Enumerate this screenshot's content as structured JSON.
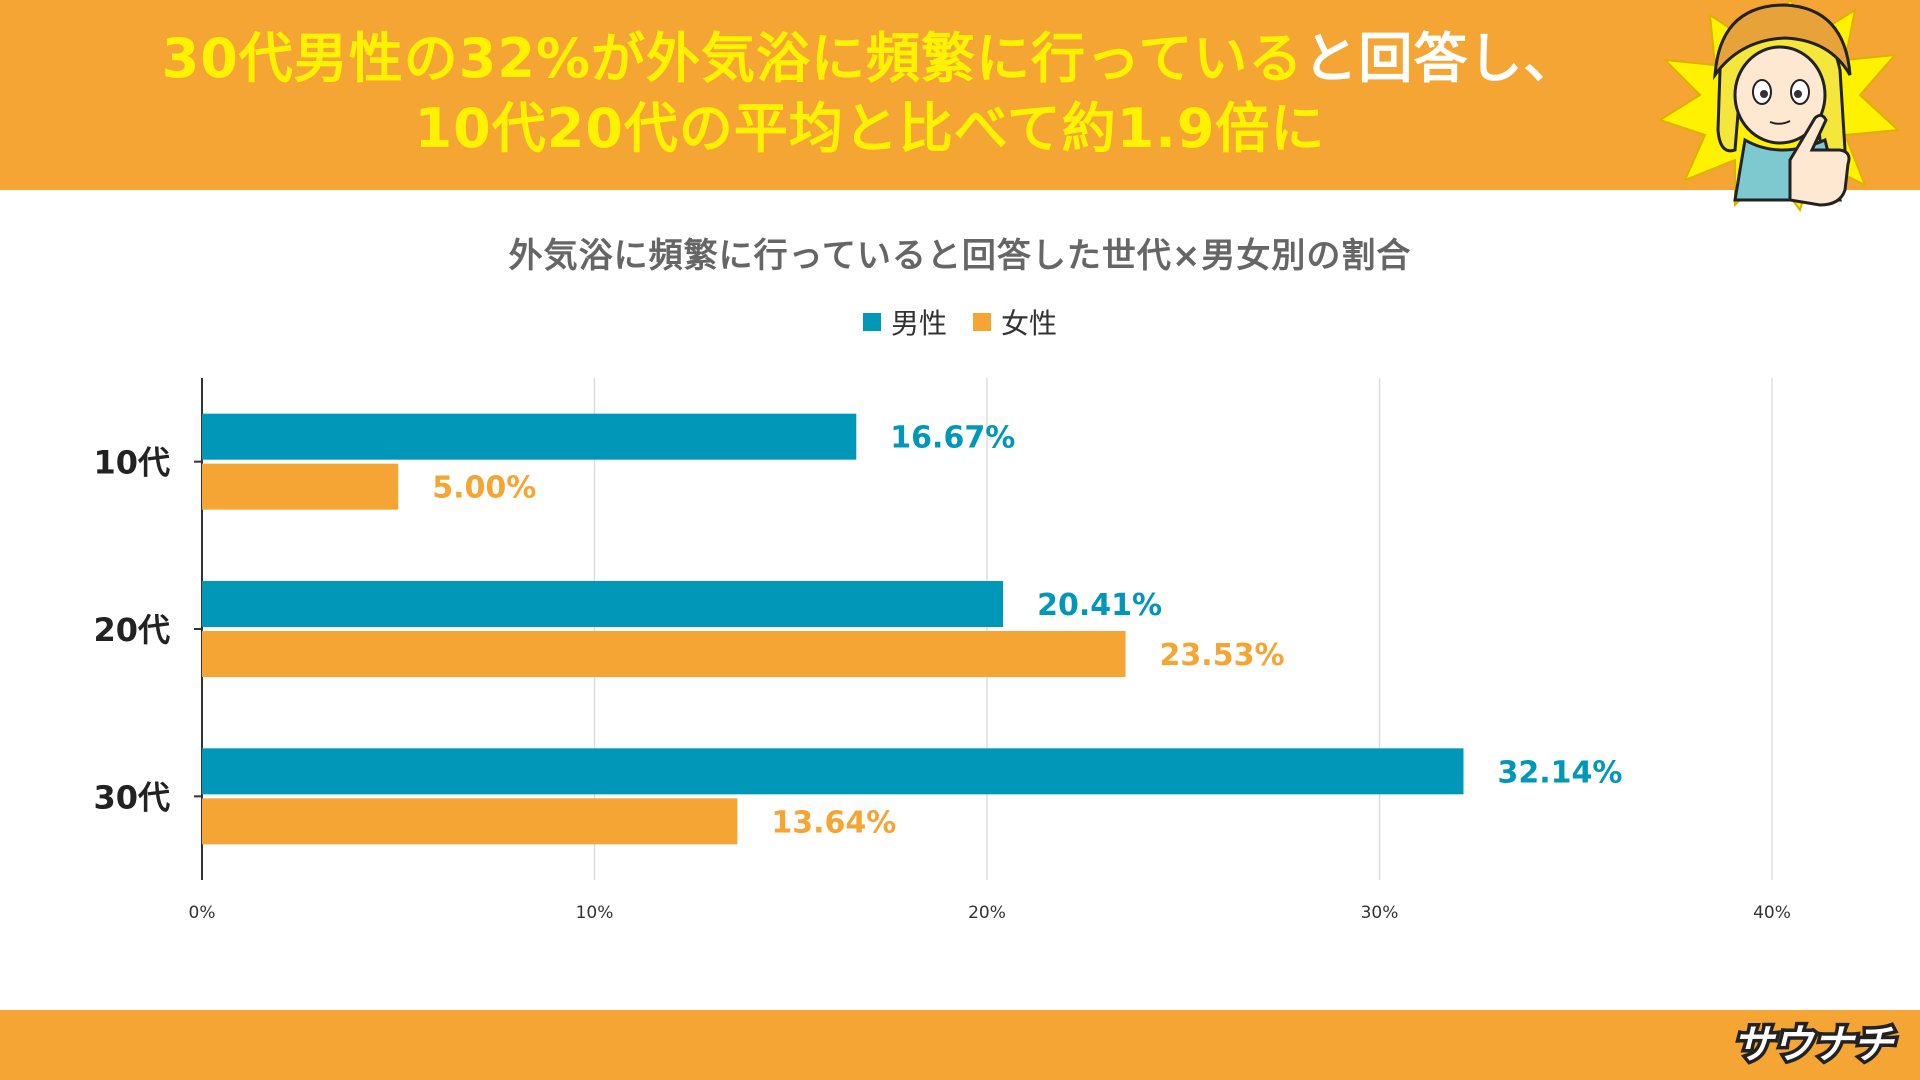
{
  "header": {
    "headline_part1": "30代男性の32%が外気浴に頻繁に行っている",
    "headline_part2": "と回答し、",
    "headline_line2": "10代20代の平均と比べて約1.9倍に",
    "accent_color": "#fff200",
    "banner_color": "#f4a533"
  },
  "chart_data": {
    "type": "bar",
    "orientation": "horizontal",
    "title": "外気浴に頻繁に行っていると回答した世代×男女別の割合",
    "categories": [
      "10代",
      "20代",
      "30代"
    ],
    "series": [
      {
        "name": "男性",
        "values": [
          16.67,
          20.41,
          32.14
        ],
        "labels": [
          "16.67%",
          "20.41%",
          "32.14%"
        ],
        "color": "#0097b9"
      },
      {
        "name": "女性",
        "values": [
          5.0,
          23.53,
          13.64
        ],
        "labels": [
          "5.00%",
          "23.53%",
          "13.64%"
        ],
        "color": "#f4a533"
      }
    ],
    "xlim": [
      0,
      40
    ],
    "xticks": [
      0,
      10,
      20,
      30,
      40
    ],
    "xtick_labels": [
      "0%",
      "10%",
      "20%",
      "30%",
      "40%"
    ],
    "grid": true,
    "legend_position": "top-center"
  },
  "footer": {
    "logo_text": "サウナチ",
    "bar_color": "#f4a533"
  },
  "mascot": {
    "icon": "pointing-girl-mascot-icon"
  }
}
